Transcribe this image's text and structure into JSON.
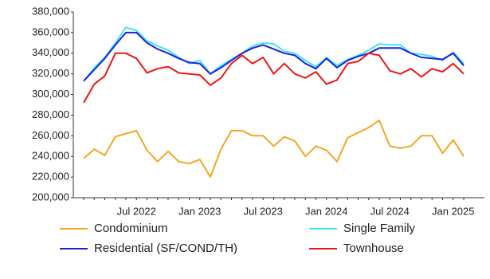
{
  "chart_data": {
    "type": "line",
    "categories": [
      null,
      null,
      null,
      null,
      null,
      "Jul 2022",
      null,
      null,
      null,
      null,
      null,
      "Jan 2023",
      null,
      null,
      null,
      null,
      null,
      "Jul 2023",
      null,
      null,
      null,
      null,
      null,
      "Jan 2024",
      null,
      null,
      null,
      null,
      null,
      "Jul 2024",
      null,
      null,
      null,
      null,
      null,
      "Jan 2025",
      null
    ],
    "series": [
      {
        "name": "Condominium",
        "color": "#f5a623",
        "values": [
          238000,
          247000,
          241000,
          259000,
          262000,
          265000,
          246000,
          235000,
          245000,
          235000,
          233000,
          237000,
          220000,
          247000,
          265000,
          265000,
          260000,
          260000,
          250000,
          259000,
          255000,
          240000,
          250000,
          246000,
          235000,
          258000,
          263000,
          268000,
          275000,
          250000,
          248000,
          250000,
          260000,
          260000,
          243000,
          256000,
          240000
        ]
      },
      {
        "name": "Single Family",
        "color": "#3fe8f5",
        "values": [
          313000,
          326000,
          336000,
          350000,
          365000,
          362000,
          352000,
          347000,
          343000,
          336000,
          330000,
          333000,
          320000,
          328000,
          334000,
          340000,
          347000,
          350000,
          349000,
          342000,
          340000,
          333000,
          327000,
          336000,
          328000,
          334000,
          338000,
          343000,
          349000,
          348000,
          348000,
          340000,
          339000,
          337000,
          333000,
          341000,
          330000
        ]
      },
      {
        "name": "Residential (SF/COND/TH)",
        "color": "#1f1fe0",
        "values": [
          313000,
          324000,
          335000,
          348000,
          360000,
          360000,
          350000,
          344000,
          340000,
          335000,
          331000,
          330000,
          320000,
          326000,
          333000,
          340000,
          345000,
          348000,
          344000,
          340000,
          338000,
          330000,
          325000,
          335000,
          326000,
          333000,
          337000,
          340000,
          345000,
          345000,
          345000,
          340000,
          336000,
          335000,
          334000,
          340000,
          328000
        ]
      },
      {
        "name": "Townhouse",
        "color": "#f01515",
        "values": [
          292000,
          310000,
          318000,
          340000,
          340000,
          335000,
          321000,
          325000,
          327000,
          321000,
          320000,
          319000,
          309000,
          316000,
          330000,
          338000,
          330000,
          336000,
          320000,
          330000,
          320000,
          316000,
          322000,
          310000,
          314000,
          330000,
          332000,
          340000,
          338000,
          323000,
          320000,
          325000,
          317000,
          325000,
          322000,
          330000,
          320000
        ]
      }
    ],
    "ylim": [
      200000,
      380000
    ],
    "yticks": [
      {
        "value": 200000,
        "label": "200,000"
      },
      {
        "value": 220000,
        "label": "220,000"
      },
      {
        "value": 240000,
        "label": "240,000"
      },
      {
        "value": 260000,
        "label": "260,000"
      },
      {
        "value": 280000,
        "label": "280,000"
      },
      {
        "value": 300000,
        "label": "300,000"
      },
      {
        "value": 320000,
        "label": "320,000"
      },
      {
        "value": 340000,
        "label": "340,000"
      },
      {
        "value": 360000,
        "label": "360,000"
      },
      {
        "value": 380000,
        "label": "380,000"
      }
    ]
  }
}
